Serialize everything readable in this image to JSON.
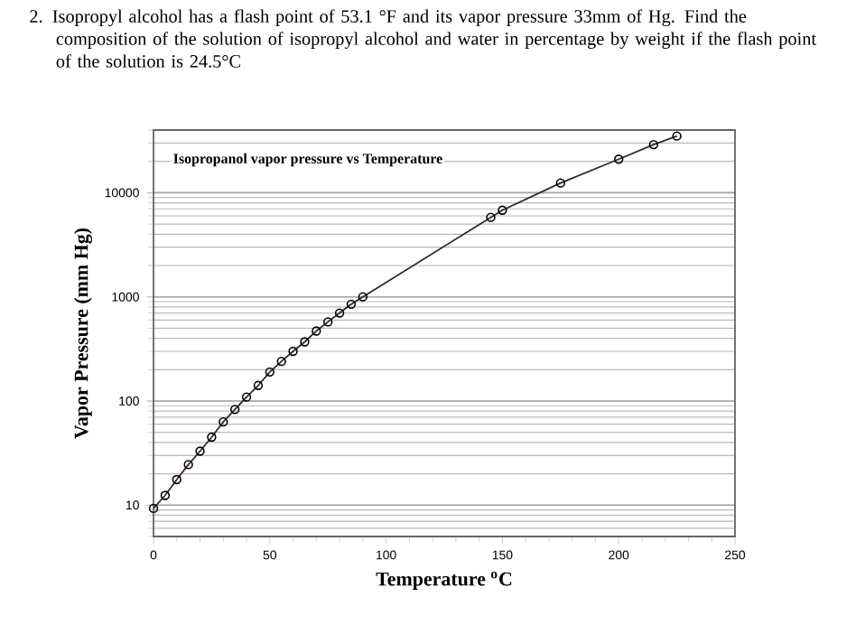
{
  "chart_data": {
    "type": "line",
    "title": "Isopropanol vapor pressure vs Temperature",
    "annotations": [
      "2. Isopropyl alcohol has a flash point of 53.1 °F and its vapor pressure 33mm of Hg. Find the composition of the solution of isopropyl alcohol and water in percentage by weight if the flash point of the solution is 24.5°C"
    ],
    "xlabel": "Temperature $^{o}$C",
    "ylabel": "Vapor Pressure (mm Hg)",
    "x": [
      0,
      5,
      10,
      15,
      20,
      25,
      30,
      35,
      40,
      45,
      50,
      55,
      60,
      65,
      70,
      75,
      80,
      85,
      90,
      145,
      150,
      175,
      200,
      215,
      225
    ],
    "series": [
      {
        "color": "#3a2626",
        "values": [
          9.3,
          12.4,
          17.6,
          24.5,
          33,
          45,
          63,
          83,
          109,
          141,
          190,
          240,
          300,
          370,
          470,
          575,
          700,
          850,
          1000,
          5800,
          6800,
          12400,
          21000,
          29000,
          35000
        ]
      }
    ],
    "xlim": [
      0,
      250
    ],
    "xticks": [
      0,
      50,
      100,
      150,
      200,
      250
    ],
    "ylim": [
      5,
      40000
    ],
    "yticks": [
      10,
      100,
      1000,
      10000
    ],
    "log": "y",
    "grid": "y",
    "marker": "circle",
    "line_style": "solid"
  }
}
